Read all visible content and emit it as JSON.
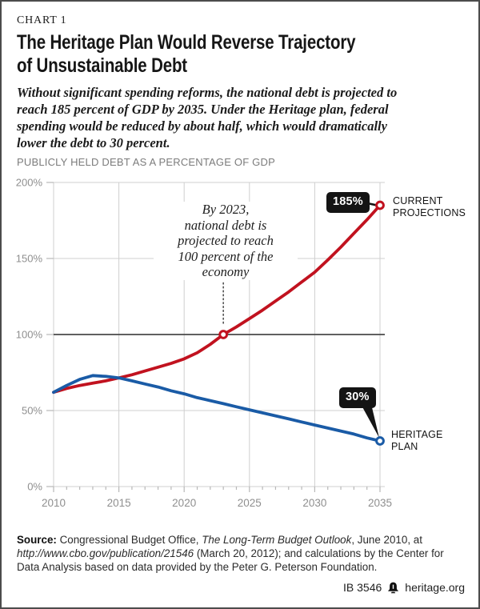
{
  "page": {
    "kicker": "CHART 1",
    "title_lines": [
      "The Heritage Plan Would Reverse Trajectory",
      "of Unsustainable Debt"
    ],
    "subtitle_lines": [
      "Without significant spending reforms, the national debt is projected to",
      "reach 185 percent of GDP by 2035. Under the Heritage plan, federal",
      "spending would be reduced by about half, which would dramatically",
      "lower the debt to 30 percent."
    ],
    "eyebrow": "PUBLICLY HELD DEBT AS A PERCENTAGE OF GDP"
  },
  "annotation": {
    "lines": [
      "By 2023,",
      "national debt is",
      "projected to reach",
      "100 percent of the",
      "economy"
    ]
  },
  "callouts": {
    "current_badge": "185%",
    "current_label_lines": [
      "CURRENT",
      "PROJECTIONS"
    ],
    "heritage_badge": "30%",
    "heritage_label_lines": [
      "HERITAGE",
      "PLAN"
    ]
  },
  "source": {
    "label": "Source:",
    "seg1": " Congressional Budget Office, ",
    "italic1": "The Long-Term Budget Outlook",
    "seg2": ", June 2010, at ",
    "italic2": "http://www.cbo.gov/publication/21546",
    "seg3": " (March 20, 2012); and calculations by the Center for Data Analysis based on data provided by the Peter G. Peterson Foundation."
  },
  "footer": {
    "doc_id": "IB 3546",
    "site": "heritage.org",
    "logo_icon": "liberty-bell-icon"
  },
  "colors": {
    "red": "#c1121f",
    "blue": "#1a5ba6",
    "grid": "#cfcfcf",
    "emphasis_line": "#4a4a4a",
    "tick": "#b8b8b8",
    "axis_text": "#8f8f8f",
    "badge_bg": "#141414",
    "pointer": "#4f4f4f"
  },
  "chart_data": {
    "type": "line",
    "title": "The Heritage Plan Would Reverse Trajectory of Unsustainable Debt",
    "xlabel": "",
    "ylabel": "PUBLICLY HELD DEBT AS A PERCENTAGE OF GDP",
    "xlim": [
      2010,
      2035
    ],
    "ylim": [
      0,
      200
    ],
    "grid": true,
    "emphasis_gridline_value": 100,
    "x_label_ticks": [
      2010,
      2015,
      2020,
      2025,
      2030,
      2035
    ],
    "y_ticks": [
      {
        "value": 0,
        "label": "0%"
      },
      {
        "value": 50,
        "label": "50%"
      },
      {
        "value": 100,
        "label": "100%"
      },
      {
        "value": 150,
        "label": "150%"
      },
      {
        "value": 200,
        "label": "200%"
      }
    ],
    "x": [
      2010,
      2011,
      2012,
      2013,
      2014,
      2015,
      2016,
      2017,
      2018,
      2019,
      2020,
      2021,
      2022,
      2023,
      2024,
      2025,
      2026,
      2027,
      2028,
      2029,
      2030,
      2031,
      2032,
      2033,
      2034,
      2035
    ],
    "series": [
      {
        "name": "CURRENT PROJECTIONS",
        "color": "#c1121f",
        "values": [
          62,
          64.5,
          66.5,
          68,
          69.5,
          71.5,
          73.5,
          76,
          78.5,
          81,
          84,
          88,
          93.5,
          100,
          105,
          110.5,
          116,
          122,
          128,
          134.5,
          141,
          149,
          157.5,
          166.5,
          175.5,
          185
        ]
      },
      {
        "name": "HERITAGE PLAN",
        "color": "#1a5ba6",
        "values": [
          62,
          66.5,
          70.5,
          73,
          72.5,
          71.5,
          69.5,
          67.5,
          65.5,
          63,
          61,
          58.5,
          56.5,
          54.5,
          52.5,
          50.5,
          48.5,
          46.5,
          44.5,
          42.5,
          40.5,
          38.5,
          36.5,
          34.5,
          32,
          30
        ]
      }
    ],
    "markers": [
      {
        "series": 0,
        "x": 2023,
        "y": 100
      },
      {
        "series": 0,
        "x": 2035,
        "y": 185
      },
      {
        "series": 1,
        "x": 2035,
        "y": 30
      }
    ],
    "pointer": {
      "x": 2023,
      "y_from": 134,
      "y_to": 106
    },
    "data_labels": [
      {
        "text": "185%",
        "series": 0,
        "x": 2035
      },
      {
        "text": "30%",
        "series": 1,
        "x": 2035
      }
    ]
  }
}
